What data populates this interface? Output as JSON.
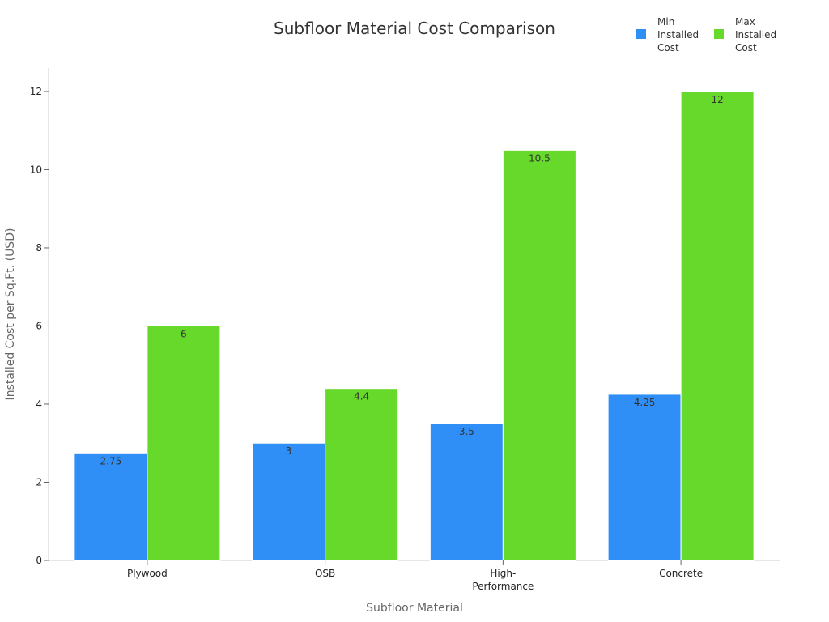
{
  "chart_data": {
    "type": "bar",
    "title": "Subfloor Material Cost Comparison",
    "xlabel": "Subfloor Material",
    "ylabel": "Installed Cost per Sq.Ft. (USD)",
    "categories": [
      [
        "Plywood"
      ],
      [
        "OSB"
      ],
      [
        "High-",
        "Performance"
      ],
      [
        "Concrete"
      ]
    ],
    "series": [
      {
        "name": [
          "Min",
          "Installed",
          "Cost"
        ],
        "color": "#2f8ff7",
        "values": [
          2.75,
          3,
          3.5,
          4.25
        ],
        "labels": [
          "2.75",
          "3",
          "3.5",
          "4.25"
        ]
      },
      {
        "name": [
          "Max",
          "Installed",
          "Cost"
        ],
        "color": "#66d92a",
        "values": [
          6,
          4.4,
          10.5,
          12
        ],
        "labels": [
          "6",
          "4.4",
          "10.5",
          "12"
        ]
      }
    ],
    "ylim": [
      0,
      12.6
    ],
    "yticks": [
      0,
      2,
      4,
      6,
      8,
      10,
      12
    ],
    "grid": false,
    "legend_position": "top-right"
  }
}
